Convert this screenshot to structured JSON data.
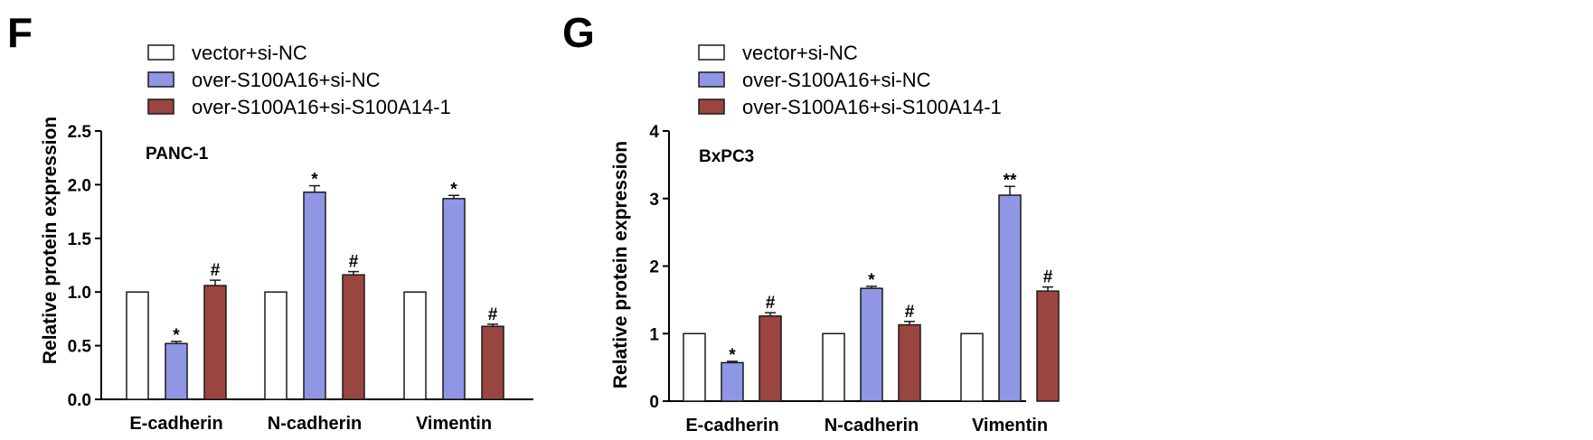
{
  "colors": {
    "vector": "#ffffff",
    "over": "#8f96e4",
    "oversi": "#9b4541",
    "stroke": "#1a1a1a"
  },
  "legend": [
    {
      "label": "vector+si-NC",
      "key": "vector"
    },
    {
      "label": "over-S100A16+si-NC",
      "key": "over"
    },
    {
      "label": "over-S100A16+si-S100A14-1",
      "key": "oversi"
    }
  ],
  "chart_data": [
    {
      "panel": "F",
      "type": "bar",
      "subtitle": "PANC-1",
      "ylabel": "Relative protein expression",
      "xlabel": "",
      "ylim": [
        0,
        2.5
      ],
      "yticks": [
        "0.0",
        "0.5",
        "1.0",
        "1.5",
        "2.0",
        "2.5"
      ],
      "categories": [
        "E-cadherin",
        "N-cadherin",
        "Vimentin"
      ],
      "series": [
        {
          "name": "vector+si-NC",
          "values": [
            1.0,
            1.0,
            1.0
          ],
          "errors": [
            0,
            0,
            0
          ],
          "sig": [
            "",
            "",
            ""
          ]
        },
        {
          "name": "over-S100A16+si-NC",
          "values": [
            0.52,
            1.93,
            1.87
          ],
          "errors": [
            0.02,
            0.06,
            0.03
          ],
          "sig": [
            "*",
            "*",
            "*"
          ]
        },
        {
          "name": "over-S100A16+si-S100A14-1",
          "values": [
            1.06,
            1.16,
            0.68
          ],
          "errors": [
            0.05,
            0.03,
            0.02
          ],
          "sig": [
            "#",
            "#",
            "#"
          ]
        }
      ]
    },
    {
      "panel": "G",
      "type": "bar",
      "subtitle": "BxPC3",
      "ylabel": "Relative protein expression",
      "xlabel": "",
      "ylim": [
        0,
        4
      ],
      "yticks": [
        "0",
        "1",
        "2",
        "3",
        "4"
      ],
      "categories": [
        "E-cadherin",
        "N-cadherin",
        "Vimentin"
      ],
      "series": [
        {
          "name": "vector+si-NC",
          "values": [
            1.0,
            1.0,
            1.0
          ],
          "errors": [
            0,
            0,
            0
          ],
          "sig": [
            "",
            "",
            ""
          ]
        },
        {
          "name": "over-S100A16+si-NC",
          "values": [
            0.57,
            1.67,
            3.05
          ],
          "errors": [
            0.02,
            0.03,
            0.13
          ],
          "sig": [
            "*",
            "*",
            "**"
          ]
        },
        {
          "name": "over-S100A16+si-S100A14-1",
          "values": [
            1.26,
            1.13,
            1.63
          ],
          "errors": [
            0.05,
            0.05,
            0.06
          ],
          "sig": [
            "#",
            "#",
            "#"
          ]
        }
      ]
    }
  ]
}
